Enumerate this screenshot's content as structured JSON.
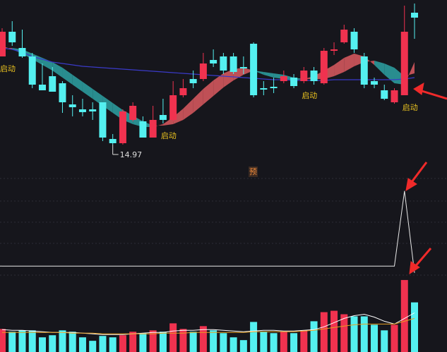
{
  "chart_data": [
    {
      "type": "candlestick",
      "ylim": [
        14.87,
        17.02
      ],
      "up_color": "#f0324f",
      "down_color": "#54f0f0",
      "open": [
        16.22,
        16.57,
        16.34,
        16.22,
        15.82,
        15.94,
        15.84,
        15.54,
        15.47,
        15.47,
        15.57,
        15.05,
        14.99,
        15.32,
        15.3,
        15.07,
        15.39,
        15.32,
        15.67,
        15.9,
        15.9,
        16.17,
        16.22,
        16.22,
        16.07,
        16.4,
        15.77,
        15.79,
        15.87,
        15.92,
        15.87,
        16.02,
        15.84,
        16.3,
        16.42,
        16.57,
        16.22,
        15.87,
        15.74,
        15.57,
        15.67,
        16.84
      ],
      "high": [
        16.62,
        16.72,
        16.6,
        16.27,
        16.12,
        16.07,
        15.87,
        15.67,
        15.62,
        15.57,
        15.57,
        15.12,
        15.47,
        15.57,
        15.37,
        15.52,
        15.62,
        15.87,
        15.9,
        16.02,
        16.27,
        16.32,
        16.27,
        16.27,
        16.22,
        16.42,
        15.87,
        15.92,
        16.02,
        15.97,
        16.07,
        16.07,
        16.34,
        16.42,
        16.67,
        16.62,
        16.27,
        15.92,
        15.82,
        15.77,
        16.94,
        16.97
      ],
      "low": [
        16.22,
        16.37,
        16.2,
        15.77,
        15.74,
        15.72,
        15.42,
        15.37,
        15.37,
        15.32,
        15.02,
        14.97,
        14.97,
        15.3,
        15.07,
        15.07,
        15.27,
        15.3,
        15.64,
        15.77,
        15.87,
        16.07,
        15.97,
        15.97,
        15.97,
        15.64,
        15.67,
        15.7,
        15.84,
        15.77,
        15.84,
        15.82,
        15.82,
        16.24,
        16.4,
        16.27,
        15.77,
        15.77,
        15.6,
        15.55,
        15.67,
        16.47
      ],
      "close": [
        16.57,
        16.42,
        16.22,
        15.82,
        15.74,
        15.72,
        15.57,
        15.5,
        15.43,
        15.44,
        15.07,
        14.99,
        15.44,
        15.52,
        15.07,
        15.32,
        15.32,
        15.67,
        15.77,
        15.84,
        16.12,
        16.12,
        16.02,
        16.0,
        16.05,
        15.67,
        15.75,
        15.77,
        15.94,
        15.8,
        16.02,
        15.87,
        16.3,
        16.32,
        16.6,
        16.32,
        15.82,
        15.82,
        15.62,
        15.74,
        16.57,
        16.77
      ],
      "ribbon": {
        "up_color": "#d2575d",
        "down_color": "#2b9a9c",
        "fast": [
          16.37,
          16.32,
          16.26,
          16.18,
          16.1,
          16.02,
          15.92,
          15.82,
          15.72,
          15.62,
          15.52,
          15.42,
          15.32,
          15.26,
          15.22,
          15.22,
          15.26,
          15.36,
          15.48,
          15.62,
          15.76,
          15.88,
          15.98,
          16.04,
          16.06,
          16.02,
          15.96,
          15.92,
          15.9,
          15.88,
          15.9,
          15.94,
          16.02,
          16.1,
          16.2,
          16.26,
          16.22,
          16.1,
          15.96,
          15.84,
          15.82,
          16.14
        ],
        "slow": [
          16.34,
          16.34,
          16.32,
          16.26,
          16.2,
          16.14,
          16.06,
          15.96,
          15.86,
          15.76,
          15.66,
          15.56,
          15.46,
          15.38,
          15.3,
          15.24,
          15.24,
          15.26,
          15.32,
          15.42,
          15.54,
          15.66,
          15.78,
          15.88,
          15.96,
          16.02,
          16.0,
          15.98,
          15.96,
          15.92,
          15.9,
          15.9,
          15.9,
          15.94,
          16.0,
          16.08,
          16.14,
          16.16,
          16.12,
          16.06,
          15.94,
          15.98
        ]
      },
      "ma": {
        "color": "#3a3ac8",
        "values": [
          16.34,
          16.32,
          16.28,
          16.22,
          16.18,
          16.14,
          16.12,
          16.1,
          16.08,
          16.07,
          16.06,
          16.05,
          16.04,
          16.03,
          16.02,
          16.01,
          16.0,
          15.99,
          15.98,
          15.97,
          15.96,
          15.95,
          15.94,
          15.93,
          15.92,
          15.91,
          15.9,
          15.89,
          15.89,
          15.88,
          15.88,
          15.88,
          15.88,
          15.89,
          15.89,
          15.89,
          15.89,
          15.89,
          15.89,
          15.89,
          15.9,
          15.92
        ]
      },
      "signals": [
        "启动",
        null,
        null,
        null,
        null,
        null,
        null,
        null,
        null,
        null,
        null,
        null,
        null,
        null,
        null,
        null,
        "启动",
        null,
        null,
        null,
        null,
        null,
        null,
        null,
        null,
        null,
        null,
        null,
        null,
        null,
        "启动",
        null,
        null,
        null,
        null,
        null,
        null,
        null,
        null,
        null,
        "启动",
        null
      ],
      "signal_color": "#e8c020",
      "low_marker": {
        "value": 14.97,
        "label": "14.97"
      }
    },
    {
      "type": "line",
      "tag": "预",
      "ylim": [
        -12,
        110
      ],
      "color": "#e8e8e8",
      "values": [
        0,
        0,
        0,
        0,
        0,
        0,
        0,
        0,
        0,
        0,
        0,
        0,
        0,
        0,
        0,
        0,
        0,
        0,
        0,
        0,
        0,
        0,
        0,
        0,
        0,
        0,
        0,
        0,
        0,
        0,
        0,
        0,
        0,
        0,
        0,
        0,
        0,
        0,
        0,
        0,
        100,
        -9
      ]
    },
    {
      "type": "bar",
      "ylim": [
        0,
        110
      ],
      "up_color": "#f0324f",
      "down_color": "#54f0f0",
      "values": [
        33,
        29,
        31,
        31,
        21,
        24,
        31,
        29,
        21,
        16,
        23,
        21,
        24,
        29,
        27,
        31,
        29,
        41,
        33,
        29,
        37,
        31,
        27,
        21,
        17,
        43,
        29,
        27,
        29,
        27,
        31,
        44,
        57,
        59,
        54,
        51,
        51,
        39,
        31,
        39,
        103,
        71
      ],
      "series": [
        {
          "color": "#ffffff",
          "values": [
            32,
            31,
            31,
            30,
            29,
            28,
            28,
            28,
            27,
            26,
            25,
            25,
            25,
            26,
            27,
            28,
            28,
            30,
            31,
            31,
            32,
            32,
            31,
            30,
            29,
            30,
            31,
            31,
            30,
            30,
            31,
            32,
            36,
            42,
            48,
            52,
            54,
            50,
            44,
            40,
            48,
            56
          ]
        },
        {
          "color": "#e8a020",
          "values": [
            28,
            28,
            28,
            28,
            28,
            28,
            28,
            27,
            27,
            27,
            26,
            26,
            26,
            26,
            26,
            26,
            27,
            27,
            27,
            28,
            28,
            28,
            28,
            28,
            28,
            29,
            29,
            29,
            29,
            29,
            30,
            31,
            33,
            35,
            37,
            39,
            40,
            40,
            40,
            40,
            44,
            48
          ]
        }
      ]
    }
  ]
}
